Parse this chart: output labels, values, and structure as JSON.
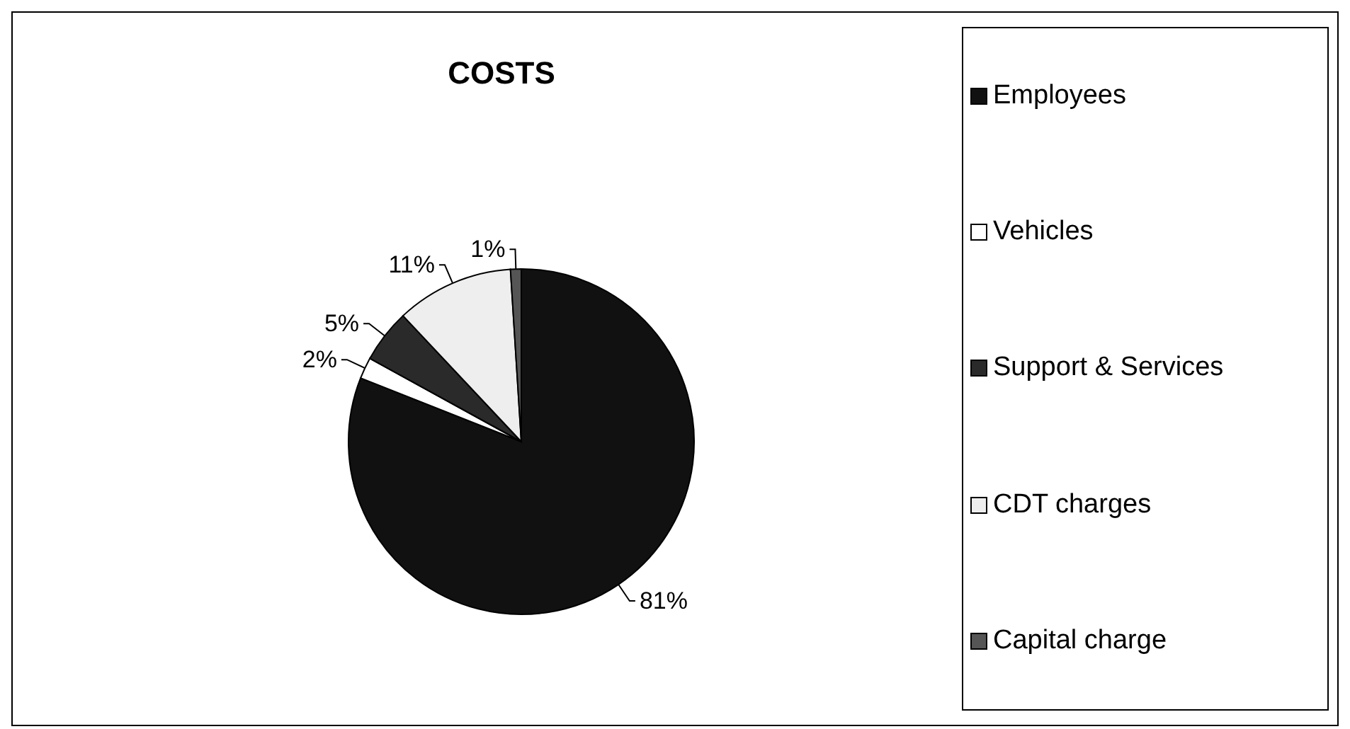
{
  "chart_data": {
    "type": "pie",
    "title": "COSTS",
    "categories": [
      "Employees",
      "Vehicles",
      "Support & Services",
      "CDT charges",
      "Capital charge"
    ],
    "values": [
      81,
      2,
      5,
      11,
      1
    ],
    "value_labels": [
      "81%",
      "2%",
      "5%",
      "11%",
      "1%"
    ],
    "colors": [
      "#111111",
      "#ffffff",
      "#2a2a2a",
      "#eeeeee",
      "#555555"
    ],
    "legend": "right"
  }
}
